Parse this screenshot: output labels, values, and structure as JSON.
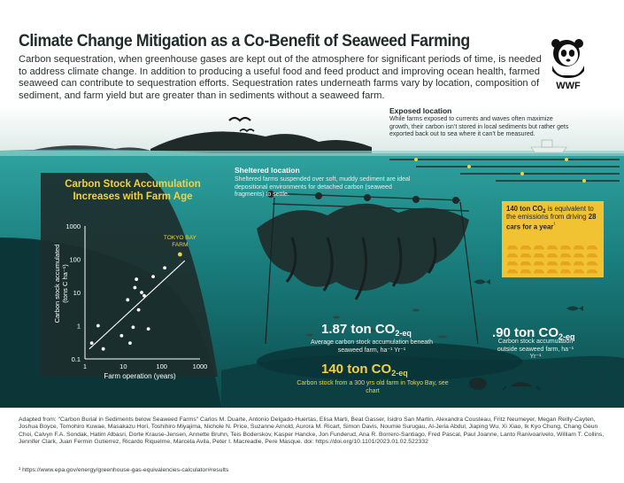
{
  "title": "Climate Change Mitigation as a Co-Benefit of Seaweed Farming",
  "intro": "Carbon sequestration, when greenhouse gases are kept out of the atmosphere for significant periods of time, is needed to address climate change. In addition to producing a useful food and feed product and improving ocean health, farmed seaweed can contribute to sequestration efforts. Sequestration rates underneath farms vary by location, composition of sediment, and farm yield but are greater than in sediments without a seaweed farm.",
  "logo": {
    "text": "WWF",
    "icon": "panda-logo-icon"
  },
  "exposed": {
    "title": "Exposed location",
    "body": "While farms exposed to currents and waves often maximize growth, their carbon isn’t stored in local sediments but rather gets exported back out to sea where it can’t be measured."
  },
  "sheltered": {
    "title": "Sheltered location",
    "body": "Sheltered farms suspended over soft, muddy sediment are ideal depositional environments for detached carbon (seaweed fragments) to settle."
  },
  "chart": {
    "title_line1": "Carbon Stock Accumulation",
    "title_line2": "Increases with Farm Age",
    "ylabel_line1": "Carbon stock accumulated",
    "ylabel_line2": "(tons C ha⁻¹)",
    "xlabel": "Farm operation (years)",
    "highlight_label_line1": "TOKYO BAY",
    "highlight_label_line2": "FARM"
  },
  "chart_data": {
    "type": "scatter",
    "title": "Carbon Stock Accumulation Increases with Farm Age",
    "xlabel": "Farm operation (years)",
    "ylabel": "Carbon stock accumulated (tons C ha⁻¹)",
    "xscale": "log",
    "yscale": "log",
    "xlim": [
      1,
      1000
    ],
    "ylim": [
      0.1,
      1000
    ],
    "xticks": [
      "1",
      "10",
      "100",
      "1000"
    ],
    "yticks": [
      "0.1",
      "1",
      "10",
      "100",
      "1000"
    ],
    "points": [
      {
        "x": 1.5,
        "y": 0.3
      },
      {
        "x": 2.2,
        "y": 1.0
      },
      {
        "x": 3.0,
        "y": 0.2
      },
      {
        "x": 9.0,
        "y": 0.5
      },
      {
        "x": 13,
        "y": 6
      },
      {
        "x": 15,
        "y": 0.3
      },
      {
        "x": 18,
        "y": 0.9
      },
      {
        "x": 20,
        "y": 14
      },
      {
        "x": 22,
        "y": 25
      },
      {
        "x": 25,
        "y": 3
      },
      {
        "x": 30,
        "y": 10
      },
      {
        "x": 35,
        "y": 8
      },
      {
        "x": 45,
        "y": 0.8
      },
      {
        "x": 60,
        "y": 30
      },
      {
        "x": 120,
        "y": 55
      }
    ],
    "highlight": {
      "label": "TOKYO BAY FARM",
      "x": 300,
      "y": 140
    },
    "trendline": [
      {
        "x": 1.3,
        "y": 0.2
      },
      {
        "x": 400,
        "y": 90
      }
    ],
    "grid": false
  },
  "callout": {
    "part1": "140 ton CO",
    "sub": "2",
    "part2": " is equivalent to the emissions from driving ",
    "bold": "28 cars",
    "part3": " for a year",
    "footnote_mark": "¹",
    "cars_count": 28
  },
  "stats": {
    "under_farm": {
      "value": "1.87 ton CO",
      "sub": "2-eq",
      "label": "Average carbon stock accumulation beneath seaweed farm, ha⁻¹ Yr⁻¹"
    },
    "tokyo": {
      "value": "140 ton CO",
      "sub": "2-eq",
      "label": "Carbon stock from a 300 yrs old farm in Tokyo Bay, see chart"
    },
    "outside": {
      "value": ".90 ton CO",
      "sub": "2-eq",
      "label": "Carbon stock accumulation outside seaweed farm, ha⁻¹ Yr⁻¹"
    }
  },
  "credits": "Adapted from: \"Carbon Burial in Sediments below Seaweed Farms\" Carlos M. Duarte, Antonio Delgado-Huertas, Elisa Marti, Beat Gasser, Isidro San Martin, Alexandra Cousteau, Fritz Neumeyer, Megan Reilly-Cayten, Joshua Boyce, Tomohiro Kuwae, Masakazu Hori, Toshihiro Miyajima, Nichole N. Price, Suzanne Arnold, Aurora M. Ricart, Simon Davis, Noumie Surugau, Al-Jeria Abdul, Jiaping Wu, Xi Xiao, Ik Kyo Chung, Chang Geun Choi, Calvyn F.A. Sondak, Hatim Albasri, Dorte Krause-Jensen, Annette Bruhn, Teis Boderskov, Kasper Hancke, Jon Funderud, Ana R. Borrero-Santiago, Fred Pascal, Paul Joanne, Lanto Ranivoarivelo, William T. Collins, Jennifer Clark, Juan Fermin Gutierrez, Ricardo Riquelme, Marcela Avila, Peter I. Macreadie, Pere Masque. doi: https://doi.org/10.1101/2023.01.02.522332",
  "footnote": "¹ https://www.epa.gov/energy/greenhouse-gas-equivalencies-calculator#results",
  "colors": {
    "sky": "#dfeae6",
    "sea": "#1a8583",
    "deep": "#0b3b3f",
    "land": "#2f3a38",
    "yellow": "#f4d23e",
    "callout": "#f1c232"
  }
}
